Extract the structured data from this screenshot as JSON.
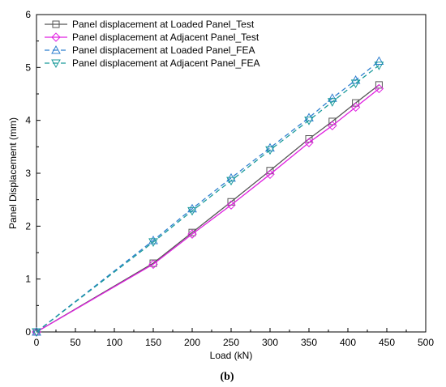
{
  "chart_data": {
    "type": "line",
    "caption": "(b)",
    "xlabel": "Load (kN)",
    "ylabel": "Panel Displacement (mm)",
    "xlim": [
      0,
      500
    ],
    "ylim": [
      0,
      6
    ],
    "xticks": [
      "0",
      "50",
      "100",
      "150",
      "200",
      "250",
      "300",
      "350",
      "400",
      "450",
      "500"
    ],
    "yticks": [
      "0",
      "1",
      "2",
      "3",
      "4",
      "5",
      "6"
    ],
    "grid": false,
    "legend_position": "top-left",
    "series": [
      {
        "name": "Panel displacement at Loaded Panel_Test",
        "color": "#555555",
        "dash": "solid",
        "marker": "square",
        "x": [
          0,
          150,
          200,
          250,
          300,
          350,
          380,
          410,
          440
        ],
        "y": [
          0,
          1.3,
          1.88,
          2.46,
          3.05,
          3.65,
          3.98,
          4.33,
          4.67
        ]
      },
      {
        "name": "Panel displacement at Adjacent Panel_Test",
        "color": "#e020e0",
        "dash": "solid",
        "marker": "diamond",
        "x": [
          0,
          150,
          200,
          250,
          300,
          350,
          380,
          410,
          440
        ],
        "y": [
          0,
          1.28,
          1.85,
          2.4,
          2.98,
          3.58,
          3.9,
          4.25,
          4.6
        ]
      },
      {
        "name": "Panel displacement at Loaded Panel_FEA",
        "color": "#2f7fcf",
        "dash": "dashed",
        "marker": "triangle-up",
        "x": [
          0,
          150,
          200,
          250,
          300,
          350,
          380,
          410,
          440
        ],
        "y": [
          0,
          1.73,
          2.33,
          2.91,
          3.48,
          4.05,
          4.42,
          4.76,
          5.12
        ]
      },
      {
        "name": "Panel displacement at Adjacent Panel_FEA",
        "color": "#1a9a9a",
        "dash": "dashed",
        "marker": "triangle-down",
        "x": [
          0,
          150,
          200,
          250,
          300,
          350,
          380,
          410,
          440
        ],
        "y": [
          0,
          1.7,
          2.29,
          2.86,
          3.44,
          4.0,
          4.35,
          4.7,
          5.04
        ]
      }
    ]
  }
}
